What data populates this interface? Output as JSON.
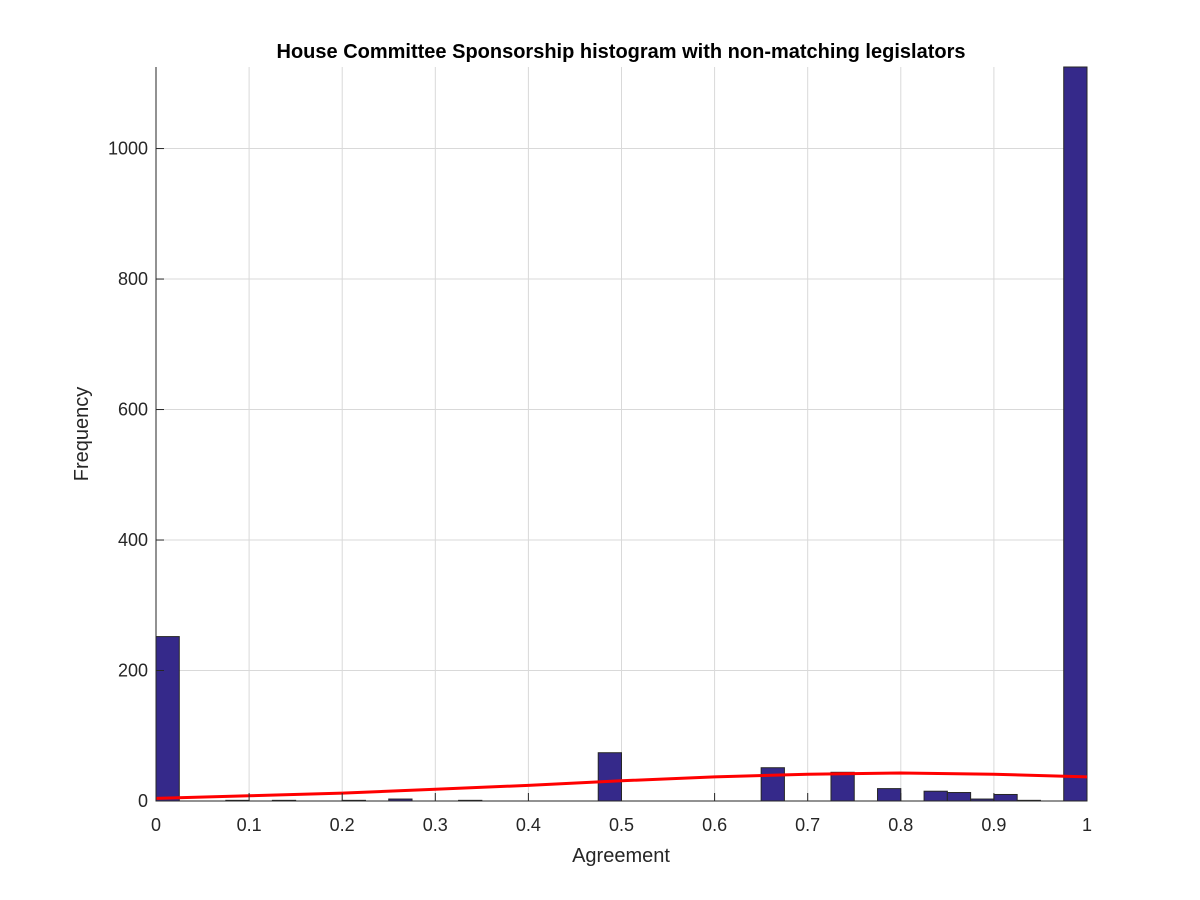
{
  "chart_data": {
    "type": "bar",
    "title": "House Committee Sponsorship histogram with non-matching legislators",
    "xlabel": "Agreement",
    "ylabel": "Frequency",
    "xlim": [
      0,
      1
    ],
    "ylim": [
      0,
      1125
    ],
    "grid": true,
    "bar_color": "#35298A",
    "bar_edge_color": "#262626",
    "fit_line_color": "#FF0000",
    "xticks": [
      "0",
      "0.1",
      "0.2",
      "0.3",
      "0.4",
      "0.5",
      "0.6",
      "0.7",
      "0.8",
      "0.9",
      "1"
    ],
    "yticks": [
      "0",
      "200",
      "400",
      "600",
      "800",
      "1000"
    ],
    "bin_width": 0.025,
    "bins": [
      {
        "x": 0.0125,
        "value": 252
      },
      {
        "x": 0.0875,
        "value": 1
      },
      {
        "x": 0.1375,
        "value": 1
      },
      {
        "x": 0.2125,
        "value": 1
      },
      {
        "x": 0.2625,
        "value": 3
      },
      {
        "x": 0.3375,
        "value": 1
      },
      {
        "x": 0.4875,
        "value": 74
      },
      {
        "x": 0.6625,
        "value": 51
      },
      {
        "x": 0.7375,
        "value": 44
      },
      {
        "x": 0.7875,
        "value": 19
      },
      {
        "x": 0.8375,
        "value": 15
      },
      {
        "x": 0.8625,
        "value": 13
      },
      {
        "x": 0.8875,
        "value": 3
      },
      {
        "x": 0.9125,
        "value": 10
      },
      {
        "x": 0.9375,
        "value": 1
      },
      {
        "x": 0.9875,
        "value": 1125
      }
    ],
    "fit_line": {
      "x": [
        0,
        0.1,
        0.2,
        0.3,
        0.4,
        0.5,
        0.6,
        0.7,
        0.8,
        0.9,
        1.0
      ],
      "y": [
        4,
        8,
        12,
        18,
        24,
        31,
        37,
        41,
        43,
        41,
        37
      ]
    }
  }
}
